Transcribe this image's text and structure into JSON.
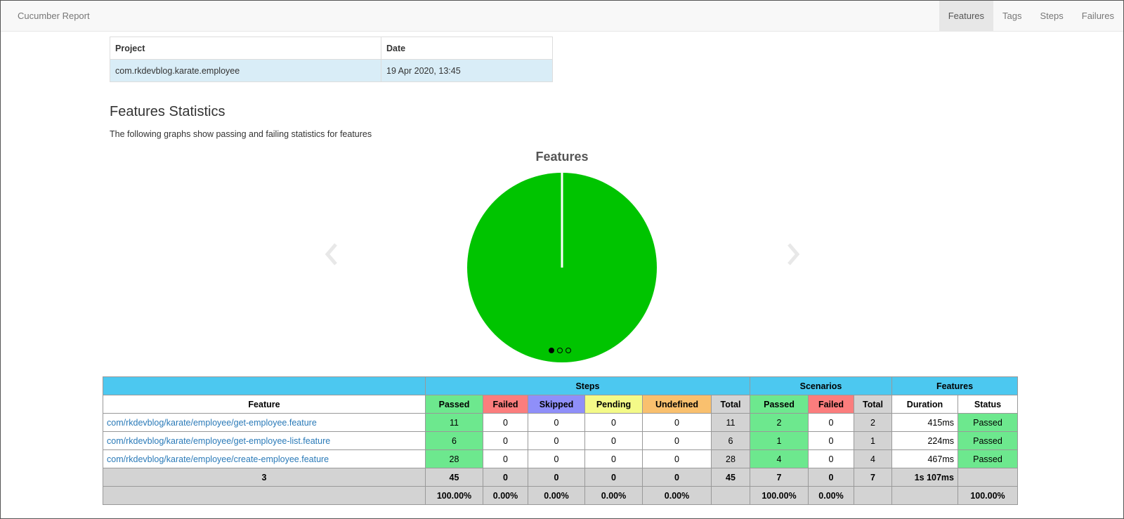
{
  "navbar": {
    "brand": "Cucumber Report",
    "items": [
      "Features",
      "Tags",
      "Steps",
      "Failures"
    ]
  },
  "project_table": {
    "headers": [
      "Project",
      "Date"
    ],
    "row": [
      "com.rkdevblog.karate.employee",
      "19 Apr 2020, 13:45"
    ]
  },
  "stats_section": {
    "title": "Features Statistics",
    "subtitle": "The following graphs show passing and failing statistics for features"
  },
  "chart_data": {
    "type": "pie",
    "title": "Features",
    "categories": [
      "Passed",
      "Failed"
    ],
    "values": [
      3,
      0
    ],
    "colors": [
      "#00c400",
      "#ff0000"
    ]
  },
  "carousel": {
    "slides": 3,
    "active": 0
  },
  "stats_table": {
    "group_headers": [
      "Steps",
      "Scenarios",
      "Features"
    ],
    "column_headers": [
      "Feature",
      "Passed",
      "Failed",
      "Skipped",
      "Pending",
      "Undefined",
      "Total",
      "Passed",
      "Failed",
      "Total",
      "Duration",
      "Status"
    ],
    "rows": [
      [
        "com/rkdevblog/karate/employee/get-employee.feature",
        "11",
        "0",
        "0",
        "0",
        "0",
        "11",
        "2",
        "0",
        "2",
        "415ms",
        "Passed"
      ],
      [
        "com/rkdevblog/karate/employee/get-employee-list.feature",
        "6",
        "0",
        "0",
        "0",
        "0",
        "6",
        "1",
        "0",
        "1",
        "224ms",
        "Passed"
      ],
      [
        "com/rkdevblog/karate/employee/create-employee.feature",
        "28",
        "0",
        "0",
        "0",
        "0",
        "28",
        "4",
        "0",
        "4",
        "467ms",
        "Passed"
      ]
    ],
    "totals": [
      "3",
      "45",
      "0",
      "0",
      "0",
      "0",
      "45",
      "7",
      "0",
      "7",
      "1s 107ms",
      ""
    ],
    "percentages": [
      "",
      "100.00%",
      "0.00%",
      "0.00%",
      "0.00%",
      "0.00%",
      "",
      "100.00%",
      "0.00%",
      "",
      "",
      "100.00%"
    ]
  }
}
